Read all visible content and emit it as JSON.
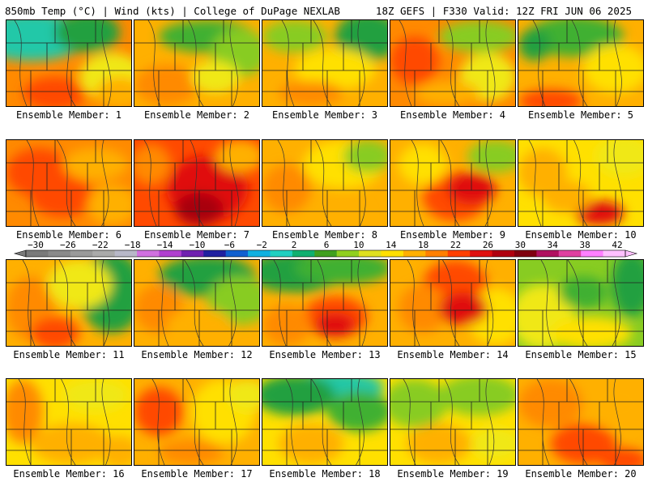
{
  "header": {
    "title_left": "850mb Temp (°C) | Wind (kts) | College of DuPage NEXLAB",
    "title_right": "18Z GEFS | F330 Valid: 12Z FRI JUN 06 2025"
  },
  "legend": {
    "ticks": [
      "−30",
      "−26",
      "−22",
      "−18",
      "−14",
      "−10",
      "−6",
      "−2",
      "2",
      "6",
      "10",
      "14",
      "18",
      "22",
      "26",
      "30",
      "34",
      "38",
      "42"
    ],
    "values": [
      -30,
      -26,
      -22,
      -18,
      -14,
      -10,
      -6,
      -2,
      2,
      6,
      10,
      14,
      18,
      22,
      26,
      30,
      34,
      38,
      42
    ],
    "colors": [
      "#7a7a7a",
      "#8a8a8a",
      "#9a9a9a",
      "#aaaaaa",
      "#b8b8c8",
      "#d070e0",
      "#b040d0",
      "#7020b0",
      "#2020a0",
      "#1060d0",
      "#10b0e0",
      "#20d0c0",
      "#10b070",
      "#40a020",
      "#90d020",
      "#e0e020",
      "#ffe000",
      "#ffb000",
      "#ff8000",
      "#ff4000",
      "#e01010",
      "#b00010",
      "#800010",
      "#b01060",
      "#e040a0",
      "#ff80ff",
      "#ffc0ff"
    ]
  },
  "panels": [
    {
      "label": "Ensemble Member: 1"
    },
    {
      "label": "Ensemble Member: 2"
    },
    {
      "label": "Ensemble Member: 3"
    },
    {
      "label": "Ensemble Member: 4"
    },
    {
      "label": "Ensemble Member: 5"
    },
    {
      "label": "Ensemble Member: 6"
    },
    {
      "label": "Ensemble Member: 7"
    },
    {
      "label": "Ensemble Member: 8"
    },
    {
      "label": "Ensemble Member: 9"
    },
    {
      "label": "Ensemble Member: 10"
    },
    {
      "label": "Ensemble Member: 11"
    },
    {
      "label": "Ensemble Member: 12"
    },
    {
      "label": "Ensemble Member: 13"
    },
    {
      "label": "Ensemble Member: 14"
    },
    {
      "label": "Ensemble Member: 15"
    },
    {
      "label": "Ensemble Member: 16"
    },
    {
      "label": "Ensemble Member: 17"
    },
    {
      "label": "Ensemble Member: 18"
    },
    {
      "label": "Ensemble Member: 19"
    },
    {
      "label": "Ensemble Member: 20"
    }
  ]
}
